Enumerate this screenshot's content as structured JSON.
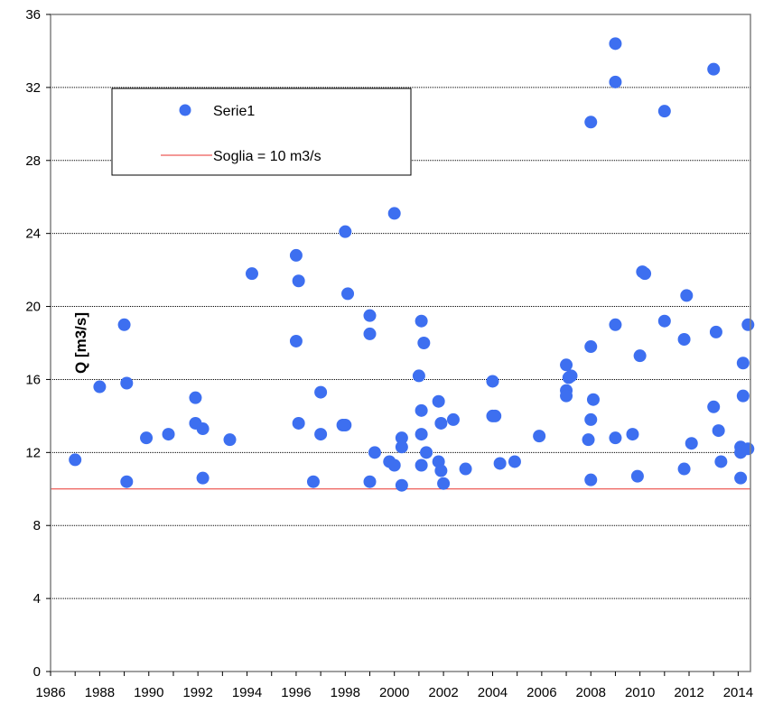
{
  "chart_data": {
    "type": "scatter",
    "ylabel": "Q [m3/s]",
    "xlabel": "",
    "xlim": [
      1986,
      2014.5
    ],
    "ylim": [
      0,
      36
    ],
    "x_ticks": [
      1986,
      1988,
      1990,
      1992,
      1994,
      1996,
      1998,
      2000,
      2002,
      2004,
      2006,
      2008,
      2010,
      2012,
      2014
    ],
    "y_ticks": [
      0,
      4,
      8,
      12,
      16,
      20,
      24,
      28,
      32,
      36
    ],
    "grid": "horizontal",
    "legend_position": "top-left",
    "colors": {
      "points": "#3d6ff0",
      "threshold": "#e8322e",
      "grid": "#000000"
    },
    "series": [
      {
        "name": "Serie1",
        "points": [
          [
            1987.0,
            11.6
          ],
          [
            1988.0,
            15.6
          ],
          [
            1989.0,
            19.0
          ],
          [
            1989.1,
            15.8
          ],
          [
            1989.1,
            10.4
          ],
          [
            1989.9,
            12.8
          ],
          [
            1990.8,
            13.0
          ],
          [
            1991.9,
            15.0
          ],
          [
            1991.9,
            13.6
          ],
          [
            1992.2,
            13.3
          ],
          [
            1992.2,
            10.6
          ],
          [
            1993.3,
            12.7
          ],
          [
            1994.2,
            21.8
          ],
          [
            1996.0,
            22.8
          ],
          [
            1996.1,
            21.4
          ],
          [
            1996.0,
            18.1
          ],
          [
            1996.1,
            13.6
          ],
          [
            1996.7,
            10.4
          ],
          [
            1997.0,
            15.3
          ],
          [
            1997.0,
            13.0
          ],
          [
            1997.9,
            13.5
          ],
          [
            1998.0,
            24.1
          ],
          [
            1998.0,
            13.5
          ],
          [
            1998.1,
            20.7
          ],
          [
            1999.0,
            19.5
          ],
          [
            1999.0,
            18.5
          ],
          [
            1999.0,
            10.4
          ],
          [
            1999.2,
            12.0
          ],
          [
            1999.8,
            11.5
          ],
          [
            2000.0,
            25.1
          ],
          [
            2000.0,
            11.3
          ],
          [
            2000.3,
            12.8
          ],
          [
            2000.3,
            12.3
          ],
          [
            2000.3,
            10.2
          ],
          [
            2001.0,
            16.2
          ],
          [
            2001.1,
            19.2
          ],
          [
            2001.1,
            14.3
          ],
          [
            2001.1,
            13.0
          ],
          [
            2001.2,
            18.0
          ],
          [
            2001.1,
            11.3
          ],
          [
            2001.3,
            12.0
          ],
          [
            2001.8,
            14.8
          ],
          [
            2001.8,
            11.5
          ],
          [
            2001.9,
            13.6
          ],
          [
            2001.9,
            11.0
          ],
          [
            2002.0,
            10.3
          ],
          [
            2002.4,
            13.8
          ],
          [
            2002.9,
            11.1
          ],
          [
            2004.0,
            15.9
          ],
          [
            2004.0,
            14.0
          ],
          [
            2004.1,
            14.0
          ],
          [
            2004.3,
            11.4
          ],
          [
            2004.9,
            11.5
          ],
          [
            2005.9,
            12.9
          ],
          [
            2007.0,
            16.8
          ],
          [
            2007.0,
            15.4
          ],
          [
            2007.0,
            15.1
          ],
          [
            2007.1,
            16.1
          ],
          [
            2007.2,
            16.2
          ],
          [
            2008.0,
            30.1
          ],
          [
            2008.0,
            17.8
          ],
          [
            2008.0,
            13.8
          ],
          [
            2007.9,
            12.7
          ],
          [
            2008.0,
            10.5
          ],
          [
            2008.1,
            14.9
          ],
          [
            2009.0,
            34.4
          ],
          [
            2009.0,
            32.3
          ],
          [
            2009.0,
            19.0
          ],
          [
            2009.0,
            12.8
          ],
          [
            2009.7,
            13.0
          ],
          [
            2009.9,
            10.7
          ],
          [
            2010.0,
            17.3
          ],
          [
            2010.1,
            21.9
          ],
          [
            2010.2,
            21.8
          ],
          [
            2011.0,
            30.7
          ],
          [
            2011.0,
            19.2
          ],
          [
            2011.8,
            18.2
          ],
          [
            2011.8,
            11.1
          ],
          [
            2011.9,
            20.6
          ],
          [
            2012.1,
            12.5
          ],
          [
            2013.0,
            33.0
          ],
          [
            2013.0,
            14.5
          ],
          [
            2013.1,
            18.6
          ],
          [
            2013.2,
            13.2
          ],
          [
            2013.3,
            11.5
          ],
          [
            2014.1,
            12.0
          ],
          [
            2014.1,
            12.3
          ],
          [
            2014.1,
            10.6
          ],
          [
            2014.2,
            16.9
          ],
          [
            2014.2,
            15.1
          ],
          [
            2014.4,
            19.0
          ],
          [
            2014.4,
            12.2
          ]
        ]
      }
    ],
    "threshold": {
      "name": "Soglia = 10 m3/s",
      "value": 10
    }
  }
}
